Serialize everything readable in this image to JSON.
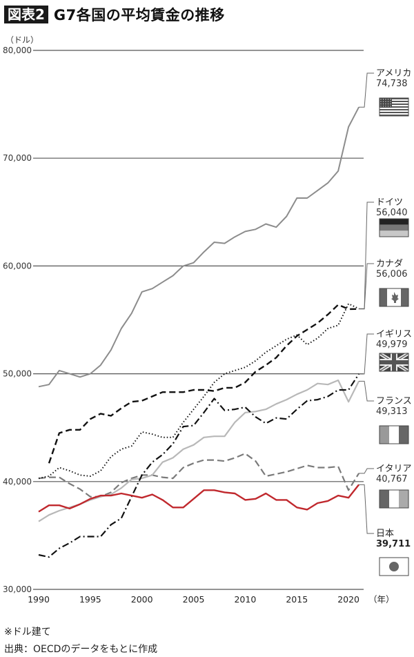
{
  "header": {
    "figure_tag": "図表2",
    "title": "G7各国の平均賃金の推移",
    "unit_label": "（ドル）"
  },
  "footer": {
    "note": "※ドル建て",
    "source": "出典：OECDのデータをもとに作成"
  },
  "colors": {
    "japan": "#c0282d",
    "usa": "#8c8c8c",
    "france": "#b8b8b8",
    "italy": "#7a7a7a",
    "germany": "#111111",
    "canada": "#111111",
    "uk": "#111111",
    "grid": "#555555"
  },
  "labels": [
    {
      "key": "usa",
      "name": "アメリカ",
      "value": "74,738",
      "flag": "usa-flag-icon"
    },
    {
      "key": "germany",
      "name": "ドイツ",
      "value": "56,040",
      "flag": "germany-flag-icon"
    },
    {
      "key": "canada",
      "name": "カナダ",
      "value": "56,006",
      "flag": "canada-flag-icon"
    },
    {
      "key": "uk",
      "name": "イギリス",
      "value": "49,979",
      "flag": "uk-flag-icon"
    },
    {
      "key": "france",
      "name": "フランス",
      "value": "49,313",
      "flag": "france-flag-icon"
    },
    {
      "key": "italy",
      "name": "イタリア",
      "value": "40,767",
      "flag": "italy-flag-icon"
    },
    {
      "key": "japan",
      "name": "日本",
      "value": "39,711",
      "flag": "japan-flag-icon"
    }
  ],
  "chart_data": {
    "type": "line",
    "title": "G7各国の平均賃金の推移",
    "xlabel": "（年）",
    "ylabel": "（ドル）",
    "ylim": [
      30000,
      80000
    ],
    "yticks": [
      30000,
      40000,
      50000,
      60000,
      70000,
      80000
    ],
    "ytick_labels": [
      "30,000",
      "40,000",
      "50,000",
      "60,000",
      "70,000",
      "80,000"
    ],
    "xticks": [
      1990,
      1995,
      2000,
      2005,
      2010,
      2015,
      2020
    ],
    "xlim": [
      1990,
      2021
    ],
    "grid": "horizontal",
    "legend_position": "right (direct labels with flags)",
    "x": [
      1990,
      1991,
      1992,
      1993,
      1994,
      1995,
      1996,
      1997,
      1998,
      1999,
      2000,
      2001,
      2002,
      2003,
      2004,
      2005,
      2006,
      2007,
      2008,
      2009,
      2010,
      2011,
      2012,
      2013,
      2014,
      2015,
      2016,
      2017,
      2018,
      2019,
      2020,
      2021
    ],
    "series": [
      {
        "name": "アメリカ",
        "key": "usa",
        "style": "solid",
        "values": [
          48800,
          49000,
          50300,
          50000,
          49700,
          50000,
          50800,
          52200,
          54200,
          55600,
          57600,
          57900,
          58500,
          59100,
          60000,
          60300,
          61300,
          62200,
          62100,
          62700,
          63200,
          63400,
          63900,
          63600,
          64600,
          66300,
          66300,
          67000,
          67700,
          68800,
          72900,
          74738
        ]
      },
      {
        "name": "ドイツ",
        "key": "germany",
        "style": "dotted",
        "values": [
          40300,
          40500,
          41300,
          41000,
          40600,
          40500,
          41000,
          42300,
          43000,
          43300,
          44600,
          44400,
          44100,
          44100,
          45500,
          46700,
          47900,
          49200,
          50000,
          50300,
          50600,
          51200,
          52000,
          52600,
          53200,
          53600,
          52700,
          53300,
          54200,
          54500,
          56500,
          56040
        ]
      },
      {
        "name": "カナダ",
        "key": "canada",
        "style": "dashed",
        "values": [
          null,
          41700,
          44500,
          44800,
          44800,
          45800,
          46300,
          46100,
          46800,
          47400,
          47500,
          47900,
          48300,
          48300,
          48300,
          48500,
          48500,
          48400,
          48700,
          48700,
          49200,
          50200,
          50800,
          51500,
          52600,
          53500,
          54100,
          54700,
          55500,
          56400,
          56000,
          56006
        ]
      },
      {
        "name": "イギリス",
        "key": "uk",
        "style": "dash-dot",
        "values": [
          33200,
          33000,
          33800,
          34300,
          34900,
          34900,
          34900,
          36000,
          36600,
          38600,
          40600,
          41800,
          42500,
          43500,
          45100,
          45200,
          46400,
          47700,
          46600,
          46700,
          46900,
          46000,
          45400,
          45900,
          45800,
          46700,
          47500,
          47600,
          47900,
          48500,
          48500,
          49979
        ]
      },
      {
        "name": "フランス",
        "key": "france",
        "style": "solid-light",
        "values": [
          36300,
          36900,
          37300,
          37600,
          37900,
          38300,
          38600,
          38800,
          39400,
          40200,
          40300,
          40600,
          41800,
          42200,
          43000,
          43400,
          44100,
          44200,
          44200,
          45500,
          46400,
          46500,
          46700,
          47200,
          47600,
          48100,
          48500,
          49100,
          49000,
          49400,
          47400,
          49313
        ]
      },
      {
        "name": "イタリア",
        "key": "italy",
        "style": "dashed-gray",
        "values": [
          40300,
          40400,
          40400,
          39800,
          39300,
          38600,
          38600,
          39000,
          39900,
          40300,
          40600,
          40600,
          40400,
          40300,
          41300,
          41700,
          42000,
          42000,
          41900,
          42200,
          42600,
          41900,
          40500,
          40700,
          40900,
          41200,
          41500,
          41300,
          41300,
          41400,
          39200,
          40767
        ]
      },
      {
        "name": "日本",
        "key": "japan",
        "style": "solid-red",
        "values": [
          37200,
          37800,
          37800,
          37500,
          37900,
          38400,
          38700,
          38700,
          38900,
          38700,
          38500,
          38800,
          38300,
          37600,
          37600,
          38400,
          39200,
          39200,
          39000,
          38900,
          38300,
          38400,
          38900,
          38300,
          38300,
          37600,
          37400,
          38000,
          38200,
          38700,
          38500,
          39711
        ]
      }
    ]
  }
}
